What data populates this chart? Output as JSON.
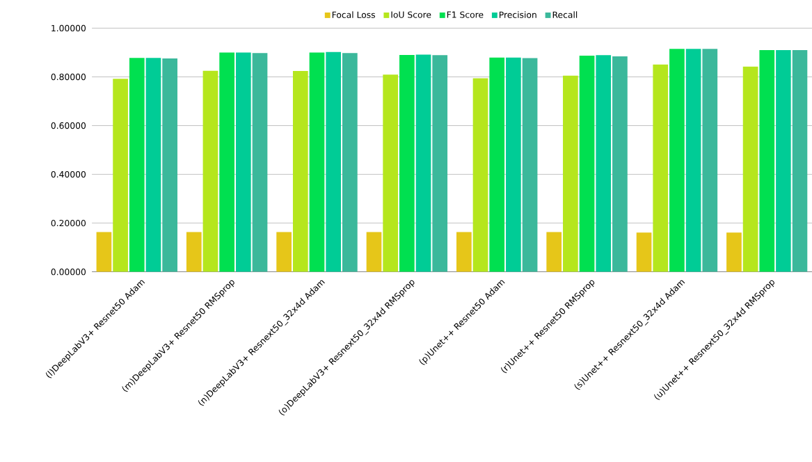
{
  "chart_data": {
    "type": "bar",
    "categories": [
      "(l)DeepLabV3+ Resnet50 Adam",
      "(m)DeepLabV3+  Resnet50 RMSprop",
      "(n)DeepLabV3+ Resnext50_32x4d Adam",
      "(o)DeepLabV3+  Resnext50_32x4d RMSprop",
      "(p)Unet++ Resnet50 Adam",
      "(r)Unet++ Resnet50 RMSprop",
      "(s)Unet++ Resnext50_32x4d Adam",
      "(u)Unet++ Resnext50_32x4d RMSprop"
    ],
    "series": [
      {
        "name": "Focal Loss",
        "color": "#e6c619",
        "values": [
          0.163,
          0.163,
          0.163,
          0.163,
          0.163,
          0.163,
          0.161,
          0.161
        ]
      },
      {
        "name": "IoU Score",
        "color": "#b5e61d",
        "values": [
          0.792,
          0.825,
          0.824,
          0.809,
          0.794,
          0.805,
          0.851,
          0.842
        ]
      },
      {
        "name": "F1 Score",
        "color": "#00e050",
        "values": [
          0.878,
          0.9,
          0.9,
          0.89,
          0.879,
          0.887,
          0.915,
          0.91
        ]
      },
      {
        "name": "Precision",
        "color": "#00cc96",
        "values": [
          0.878,
          0.9,
          0.902,
          0.891,
          0.879,
          0.889,
          0.915,
          0.91
        ]
      },
      {
        "name": "Recall",
        "color": "#3bb89b",
        "values": [
          0.876,
          0.898,
          0.898,
          0.889,
          0.877,
          0.884,
          0.915,
          0.91
        ]
      }
    ],
    "ylim": [
      0,
      1
    ],
    "yticks": [
      {
        "value": 0,
        "label": "0.00000"
      },
      {
        "value": 0.2,
        "label": "0.20000"
      },
      {
        "value": 0.4,
        "label": "0.40000"
      },
      {
        "value": 0.6,
        "label": "0.60000"
      },
      {
        "value": 0.8,
        "label": "0.80000"
      },
      {
        "value": 1,
        "label": "1.00000"
      }
    ],
    "grid": "y",
    "legend": "top"
  }
}
